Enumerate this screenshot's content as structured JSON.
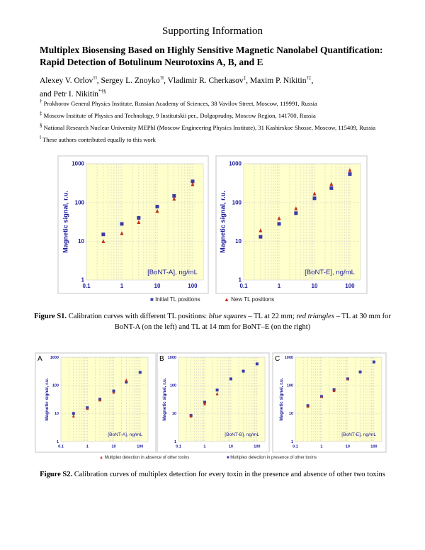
{
  "header": {
    "supporting": "Supporting Information",
    "title": "Multiplex Biosensing Based on Highly Sensitive Magnetic Nanolabel Quantification: Rapid Detection of Botulinum Neurotoxins A, B, and E",
    "authors": [
      {
        "name": "Alexey V. Orlov",
        "sup": "†ǁ"
      },
      {
        "name": "Sergey L. Znoyko",
        "sup": "†ǁ"
      },
      {
        "name": "Vladimir R. Cherkasov",
        "sup": "‡"
      },
      {
        "name": "Maxim P. Nikitin",
        "sup": "†‡"
      },
      {
        "name": "and Petr I. Nikitin",
        "sup": "*†§"
      }
    ],
    "affiliations": [
      {
        "mark": "†",
        "text": "Prokhorov General Physics Institute, Russian Academy of Sciences, 38 Vavilov Street, Moscow, 119991, Russia"
      },
      {
        "mark": "‡",
        "text": "Moscow Institute of Physics and Technology, 9 Institutskii per., Dolgoprudny, Moscow Region, 141700, Russia"
      },
      {
        "mark": "§",
        "text": "National Research Nuclear University MEPhI (Moscow Engineering Physics Institute), 31 Kashirskoe Shosse, Moscow, 115409, Russia"
      },
      {
        "mark": "ǁ",
        "text": "These authors contributed equally to this work"
      }
    ]
  },
  "figure_s1": {
    "label": "Figure S1.",
    "caption_1": " Calibration curves with different TL positions: ",
    "blue": "blue squares",
    "caption_2": " – TL at 22 mm; ",
    "red": "red triangles",
    "caption_3": " – TL at 30 mm for BoNT-A (on the left) and TL at 14 mm for BoNT–E (on the right)",
    "legend_blue": "Initial TL positions",
    "legend_red": "New TL positions"
  },
  "figure_s2": {
    "label": "Figure S2.",
    "caption": " Calibration curves of multiplex detection for every toxin in the presence and absence of other two toxins",
    "legend_red": "Multiplex detection in absence of other toxins",
    "legend_blue": "Multiplex detection in presence of other toxins"
  },
  "colors": {
    "blue": "#3a3aa8",
    "red": "#c0301c",
    "plot_bg": "#ffffcc",
    "axis_text": "#1a1a9a"
  },
  "chart_data": [
    {
      "id": "s1a",
      "type": "scatter",
      "xscale": "log",
      "yscale": "log",
      "xlim": [
        0.1,
        200
      ],
      "ylim": [
        1,
        1000
      ],
      "xticks": [
        "0.1",
        "1",
        "10",
        "100"
      ],
      "yticks": [
        "1",
        "10",
        "100",
        "1000"
      ],
      "ylabel": "Magnetic signal, r.u.",
      "annotation": "[BoNT-A], ng/mL",
      "grid": true,
      "series": [
        {
          "name": "Initial TL positions",
          "marker": "square",
          "x": [
            0.3,
            1,
            3,
            10,
            30,
            100
          ],
          "y": [
            15,
            28,
            40,
            78,
            148,
            350
          ]
        },
        {
          "marker": "triangle",
          "x": [
            0.3,
            1,
            3,
            10,
            30,
            100
          ],
          "y": [
            10,
            16,
            31,
            60,
            125,
            295
          ]
        }
      ]
    },
    {
      "id": "s1e",
      "type": "scatter",
      "xscale": "log",
      "yscale": "log",
      "xlim": [
        0.1,
        200
      ],
      "ylim": [
        1,
        1000
      ],
      "xticks": [
        "0.1",
        "1",
        "10",
        "100"
      ],
      "yticks": [
        "1",
        "10",
        "100",
        "1000"
      ],
      "ylabel": "Magnetic signal, r.u.",
      "annotation": "[BoNT-E], ng/mL",
      "grid": true,
      "series": [
        {
          "marker": "square",
          "x": [
            0.3,
            1,
            3,
            10,
            30,
            100
          ],
          "y": [
            13,
            28,
            53,
            128,
            235,
            540
          ]
        },
        {
          "name": "New TL positions",
          "marker": "triangle",
          "x": [
            0.3,
            1,
            3,
            10,
            30,
            100
          ],
          "y": [
            19,
            39,
            70,
            170,
            300,
            680
          ]
        }
      ]
    },
    {
      "id": "s2a",
      "panel": "A",
      "type": "scatter",
      "xscale": "log",
      "yscale": "log",
      "xlim": [
        0.1,
        200
      ],
      "ylim": [
        1,
        1000
      ],
      "xticks": [
        "0.1",
        "1",
        "10",
        "100"
      ],
      "yticks": [
        "1",
        "10",
        "100",
        "1000"
      ],
      "ylabel": "Magnetic signal, r.u.",
      "annotation": "[BoNT-A], ng/mL",
      "grid": true,
      "series": [
        {
          "marker": "square",
          "x": [
            0.3,
            1,
            3,
            10,
            30,
            100
          ],
          "y": [
            10,
            16,
            32,
            63,
            130,
            290
          ]
        },
        {
          "marker": "triangle",
          "x": [
            0.3,
            1,
            3,
            10,
            30
          ],
          "y": [
            8,
            15,
            30,
            57,
            150
          ]
        }
      ]
    },
    {
      "id": "s2b",
      "panel": "B",
      "type": "scatter",
      "xscale": "log",
      "yscale": "log",
      "xlim": [
        0.1,
        200
      ],
      "ylim": [
        1,
        1000
      ],
      "xticks": [
        "0.1",
        "1",
        "10",
        "100"
      ],
      "yticks": [
        "1",
        "10",
        "100",
        "1000"
      ],
      "ylabel": "Magnetic signal, r.u.",
      "annotation": "[BoNT-B], ng/mL",
      "grid": true,
      "series": [
        {
          "marker": "square",
          "x": [
            0.3,
            1,
            3,
            10,
            30,
            100
          ],
          "y": [
            8.5,
            25,
            68,
            170,
            320,
            580
          ]
        },
        {
          "marker": "triangle",
          "x": [
            0.3,
            1,
            3
          ],
          "y": [
            8,
            22,
            50
          ]
        }
      ]
    },
    {
      "id": "s2c",
      "panel": "C",
      "type": "scatter",
      "xscale": "log",
      "yscale": "log",
      "xlim": [
        0.1,
        200
      ],
      "ylim": [
        1,
        1000
      ],
      "xticks": [
        "0.1",
        "1",
        "10",
        "100"
      ],
      "yticks": [
        "1",
        "10",
        "100",
        "1000"
      ],
      "ylabel": "Magnetic signal, r.u.",
      "annotation": "[BoNT-E], ng/mL",
      "grid": true,
      "series": [
        {
          "marker": "square",
          "x": [
            0.3,
            1,
            3,
            10,
            30,
            100
          ],
          "y": [
            19,
            40,
            70,
            170,
            300,
            680
          ]
        },
        {
          "marker": "triangle",
          "x": [
            0.3,
            1,
            3,
            10
          ],
          "y": [
            18,
            40,
            65,
            170
          ]
        }
      ]
    }
  ]
}
